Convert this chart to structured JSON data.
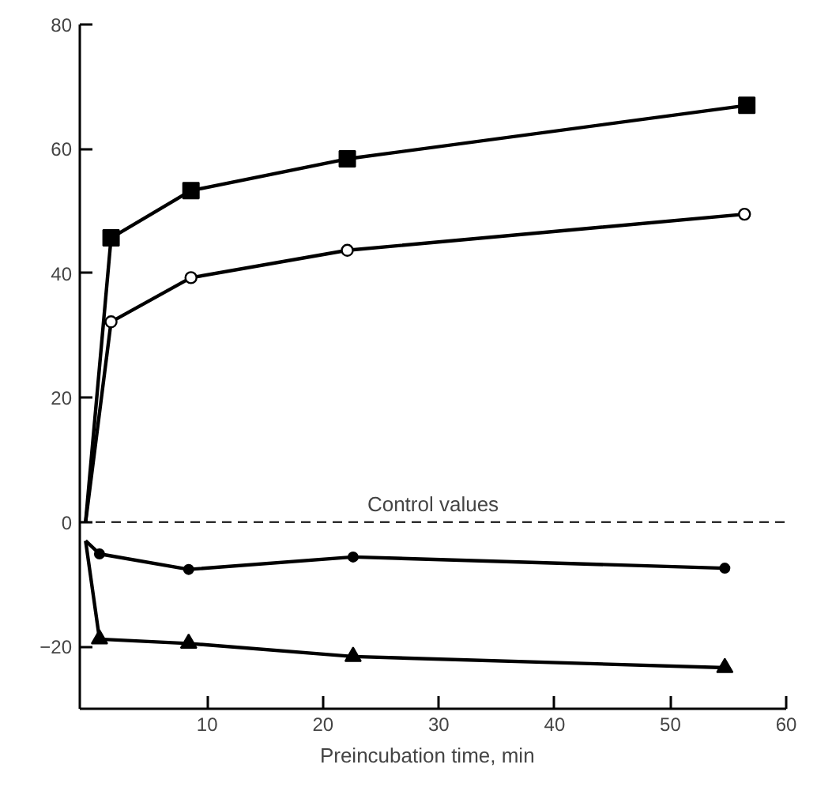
{
  "chart_data": {
    "type": "line",
    "xlabel": "Preincubation time,   min",
    "xlim": [
      -1,
      60
    ],
    "ylim": [
      -30,
      80
    ],
    "xticks": [
      10,
      20,
      30,
      40,
      50,
      60
    ],
    "yticks": [
      -20,
      0,
      20,
      40,
      60,
      80
    ],
    "grid": false,
    "line_style": "solid",
    "series": [
      {
        "color": "#000000",
        "marker": "square",
        "x": [
          -0.5,
          1.7,
          8.6,
          22.1,
          56.6
        ],
        "values": [
          0,
          45.7,
          53.3,
          58.4,
          67
        ]
      },
      {
        "color": "#000000",
        "marker": "circle_open",
        "x": [
          -0.5,
          1.7,
          8.6,
          22.1,
          56.4
        ],
        "values": [
          0,
          32.2,
          39.3,
          43.7,
          49.5
        ]
      },
      {
        "color": "#000000",
        "marker": "circle",
        "x": [
          -0.5,
          0.7,
          8.4,
          22.6,
          54.7
        ],
        "values": [
          -3,
          -5.1,
          -7.6,
          -5.6,
          -7.4
        ]
      },
      {
        "color": "#000000",
        "marker": "triangle",
        "x": [
          -0.5,
          0.7,
          8.4,
          22.6,
          54.7
        ],
        "values": [
          -3,
          -18.8,
          -19.5,
          -21.6,
          -23.4
        ]
      }
    ],
    "ref_lines": [
      {
        "axis": "y",
        "value": 0,
        "label": "Control values",
        "line_style": "dashed",
        "color": "#000000"
      }
    ]
  }
}
